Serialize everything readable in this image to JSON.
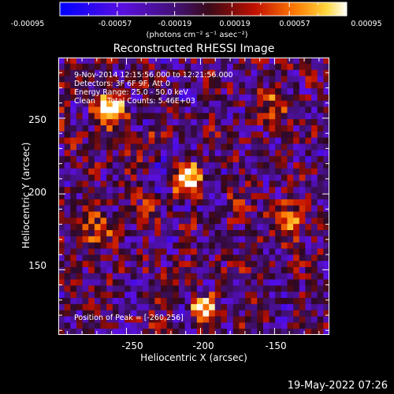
{
  "colorbar": {
    "ticks": [
      "-0.00095",
      "-0.00057",
      "-0.00019",
      "0.00019",
      "0.00057",
      "0.00095"
    ],
    "units": "(photons cm⁻² s⁻¹ asec⁻²)"
  },
  "annotations": {
    "line1": "9-Nov-2014 12:15:56.000 to 12:21:56.000",
    "line2": "Detectors: 3F 6F 9F, Att 0",
    "line3": "Energy Range: 25.0 - 50.0 keV",
    "line4": "Clean     Total Counts: 5.46E+03",
    "peak": "Position of Peak = [-260,256]"
  },
  "footer": {
    "timestamp": "19-May-2022 07:26"
  },
  "chart_data": {
    "type": "heatmap",
    "title": "Reconstructed RHESSI Image",
    "xlabel": "Heliocentric X (arcsec)",
    "ylabel": "Heliocentric Y (arcsec)",
    "xlim": [
      -296,
      -113
    ],
    "ylim": [
      107,
      290
    ],
    "xticks": [
      -250,
      -200,
      -150
    ],
    "yticks": [
      150,
      200,
      250
    ],
    "colorbar_range": [
      -0.00095,
      0.00095
    ],
    "colormap": "hot-blue",
    "sources": [
      {
        "x": -262,
        "y": 256,
        "amplitude": 1.0,
        "width": 10
      },
      {
        "x": -209,
        "y": 210,
        "amplitude": 0.9,
        "width": 9
      },
      {
        "x": -198,
        "y": 124,
        "amplitude": 0.8,
        "width": 8
      },
      {
        "x": -140,
        "y": 180,
        "amplitude": 0.55,
        "width": 12
      },
      {
        "x": -268,
        "y": 175,
        "amplitude": 0.45,
        "width": 11
      },
      {
        "x": -150,
        "y": 260,
        "amplitude": 0.4,
        "width": 10
      }
    ]
  }
}
